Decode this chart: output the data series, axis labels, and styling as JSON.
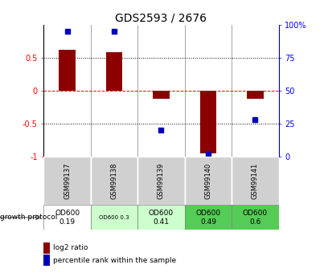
{
  "title": "GDS2593 / 2676",
  "samples": [
    "GSM99137",
    "GSM99138",
    "GSM99139",
    "GSM99140",
    "GSM99141"
  ],
  "log2_ratios": [
    0.62,
    0.58,
    -0.12,
    -0.95,
    -0.12
  ],
  "percentile_ranks": [
    95,
    95,
    20,
    2,
    28
  ],
  "protocol_labels": [
    "OD600\n0.19",
    "OD600 0.3",
    "OD600\n0.41",
    "OD600\n0.49",
    "OD600\n0.6"
  ],
  "protocol_colors": [
    "#ffffff",
    "#ccffcc",
    "#ccffcc",
    "#55cc55",
    "#55cc55"
  ],
  "bar_color": "#8b0000",
  "dot_color": "#0000bb",
  "ylim": [
    -1,
    1
  ],
  "y2lim": [
    0,
    100
  ],
  "yticks": [
    -1,
    -0.5,
    0,
    0.5
  ],
  "y2ticks": [
    0,
    25,
    50,
    75,
    100
  ],
  "ytick_labels": [
    "-1",
    "-0.5",
    "0",
    "0.5"
  ],
  "y2tick_labels": [
    "0",
    "25",
    "50",
    "75",
    "100%"
  ],
  "dotted_lines": [
    -0.5,
    0.5
  ],
  "bar_width": 0.35,
  "legend_items": [
    "log2 ratio",
    "percentile rank within the sample"
  ],
  "legend_colors": [
    "#8b0000",
    "#0000bb"
  ],
  "sample_bg": "#d0d0d0",
  "growth_protocol_text": "growth protocol"
}
